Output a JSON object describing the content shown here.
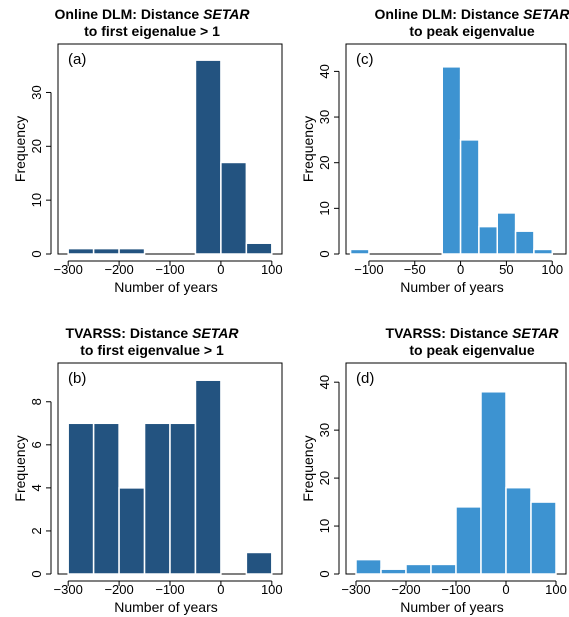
{
  "colors": {
    "dark": "#235380",
    "light": "#3d93d1"
  },
  "chart_data": [
    {
      "type": "bar",
      "panel": "(a)",
      "title_line1": "Online DLM: Distance ",
      "title_em": "SETAR",
      "title_line2": "to first eigenalue > 1",
      "xlabel": "Number of years",
      "ylabel": "Frequency",
      "color": "dark",
      "xlim": [
        -320,
        120
      ],
      "ylim": [
        0,
        39
      ],
      "xticks": [
        -300,
        -200,
        -100,
        0,
        100
      ],
      "yticks": [
        0,
        10,
        20,
        30
      ],
      "bins": [
        {
          "x0": -300,
          "x1": -250,
          "value": 1
        },
        {
          "x0": -250,
          "x1": -200,
          "value": 1
        },
        {
          "x0": -200,
          "x1": -150,
          "value": 1
        },
        {
          "x0": -50,
          "x1": 0,
          "value": 36
        },
        {
          "x0": 0,
          "x1": 50,
          "value": 17
        },
        {
          "x0": 50,
          "x1": 100,
          "value": 2
        }
      ]
    },
    {
      "type": "bar",
      "panel": "(c)",
      "title_line1": "Online DLM: Distance ",
      "title_em": "SETAR",
      "title_line2": "to peak eigenvalue",
      "xlabel": "Number of years",
      "ylabel": "Frequency",
      "color": "light",
      "xlim": [
        -125,
        115
      ],
      "ylim": [
        0,
        46
      ],
      "xticks": [
        -100,
        -50,
        0,
        50,
        100
      ],
      "yticks": [
        0,
        10,
        20,
        30,
        40
      ],
      "bins": [
        {
          "x0": -120,
          "x1": -100,
          "value": 1
        },
        {
          "x0": -20,
          "x1": 0,
          "value": 41
        },
        {
          "x0": 0,
          "x1": 20,
          "value": 25
        },
        {
          "x0": 20,
          "x1": 40,
          "value": 6
        },
        {
          "x0": 40,
          "x1": 60,
          "value": 9
        },
        {
          "x0": 60,
          "x1": 80,
          "value": 5
        },
        {
          "x0": 80,
          "x1": 100,
          "value": 1
        }
      ]
    },
    {
      "type": "bar",
      "panel": "(b)",
      "title_line1": "TVARSS: Distance ",
      "title_em": "SETAR",
      "title_line2": "to first eigenvalue > 1",
      "xlabel": "Number of years",
      "ylabel": "Frequency",
      "color": "dark",
      "xlim": [
        -320,
        120
      ],
      "ylim": [
        0,
        9.8
      ],
      "xticks": [
        -300,
        -200,
        -100,
        0,
        100
      ],
      "yticks": [
        0,
        2,
        4,
        6,
        8
      ],
      "bins": [
        {
          "x0": -300,
          "x1": -250,
          "value": 7
        },
        {
          "x0": -250,
          "x1": -200,
          "value": 7
        },
        {
          "x0": -200,
          "x1": -150,
          "value": 4
        },
        {
          "x0": -150,
          "x1": -100,
          "value": 7
        },
        {
          "x0": -100,
          "x1": -50,
          "value": 7
        },
        {
          "x0": -50,
          "x1": 0,
          "value": 9
        },
        {
          "x0": 50,
          "x1": 100,
          "value": 1
        }
      ]
    },
    {
      "type": "bar",
      "panel": "(d)",
      "title_line1": "TVARSS: Distance ",
      "title_em": "SETAR",
      "title_line2": "to peak eigenvalue",
      "xlabel": "Number of years",
      "ylabel": "Frequency",
      "color": "light",
      "xlim": [
        -320,
        120
      ],
      "ylim": [
        0,
        44
      ],
      "xticks": [
        -300,
        -200,
        -100,
        0,
        100
      ],
      "yticks": [
        0,
        10,
        20,
        30,
        40
      ],
      "bins": [
        {
          "x0": -300,
          "x1": -250,
          "value": 3
        },
        {
          "x0": -250,
          "x1": -200,
          "value": 1
        },
        {
          "x0": -200,
          "x1": -150,
          "value": 2
        },
        {
          "x0": -150,
          "x1": -100,
          "value": 2
        },
        {
          "x0": -100,
          "x1": -50,
          "value": 14
        },
        {
          "x0": -50,
          "x1": 0,
          "value": 38
        },
        {
          "x0": 0,
          "x1": 50,
          "value": 18
        },
        {
          "x0": 50,
          "x1": 100,
          "value": 15
        }
      ]
    }
  ]
}
